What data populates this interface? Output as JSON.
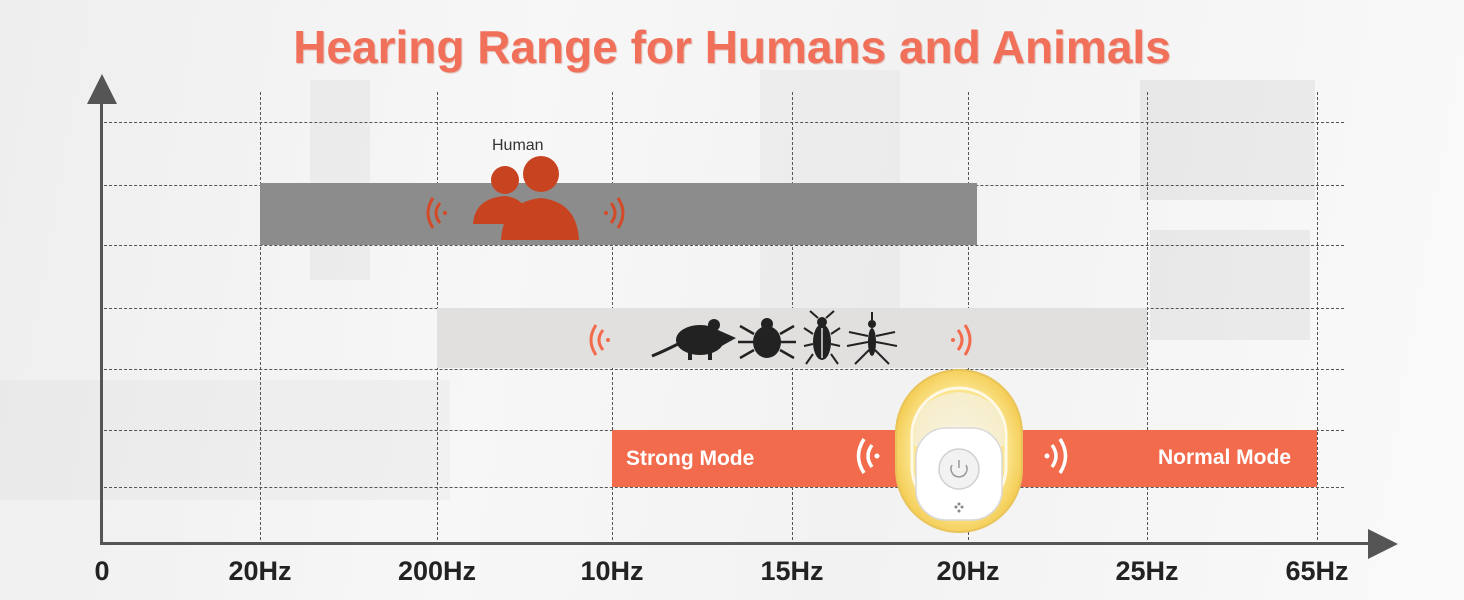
{
  "chart_data": {
    "type": "bar",
    "title": "Hearing Range for Humans and Animals",
    "xlabel": "",
    "ylabel": "",
    "x_ticks": [
      "0",
      "20Hz",
      "200Hz",
      "10Hz",
      "15Hz",
      "20Hz",
      "25Hz",
      "65Hz"
    ],
    "grid": true,
    "series": [
      {
        "label": "Human",
        "start_tick": 1,
        "end_tick": 5.05,
        "color": "#8c8c8c"
      },
      {
        "start_tick": 2,
        "end_tick": 6,
        "color": "#e2e0df"
      },
      {
        "start_tick": 3,
        "end_tick": 7,
        "color": "#f26b4c",
        "left_label": "Strong Mode",
        "right_label": "Normal Mode"
      }
    ]
  },
  "colors": {
    "accent": "#f26b4c",
    "title": "#f0705a",
    "axis": "#555555"
  },
  "icons": {
    "human": "people-icon",
    "animals": [
      "mouse-icon",
      "tick-icon",
      "cockroach-icon",
      "mosquito-icon"
    ],
    "sound": "sound-wave-icon",
    "device": "ultrasonic-repeller-device"
  }
}
